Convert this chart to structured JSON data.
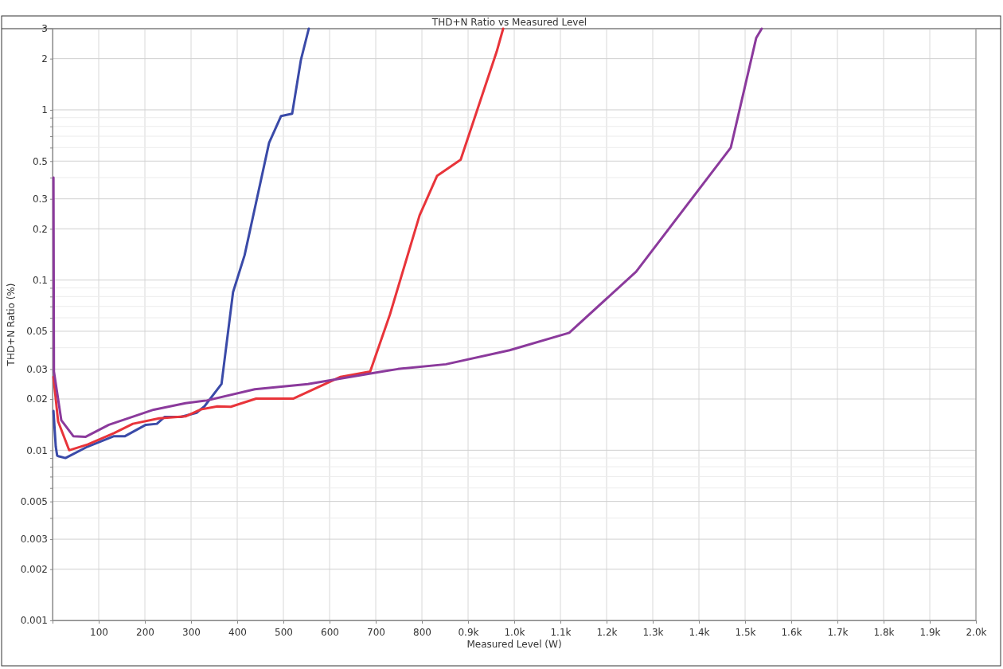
{
  "chart_data": {
    "type": "line",
    "title": "THD+N Ratio vs Measured Level",
    "xlabel": "Measured Level (W)",
    "ylabel": "THD+N Ratio (%)",
    "log": "y",
    "grid": true,
    "marker": "none",
    "line_style": "solid",
    "xlim": [
      0,
      2000
    ],
    "xticks": [
      100,
      200,
      300,
      400,
      500,
      600,
      700,
      800,
      {
        "value": 900,
        "label": "0.9k"
      },
      {
        "value": 1000,
        "label": "1.0k"
      },
      {
        "value": 1100,
        "label": "1.1k"
      },
      {
        "value": 1200,
        "label": "1.2k"
      },
      {
        "value": 1300,
        "label": "1.3k"
      },
      {
        "value": 1400,
        "label": "1.4k"
      },
      {
        "value": 1500,
        "label": "1.5k"
      },
      {
        "value": 1600,
        "label": "1.6k"
      },
      {
        "value": 1700,
        "label": "1.7k"
      },
      {
        "value": 1800,
        "label": "1.8k"
      },
      {
        "value": 1900,
        "label": "1.9k"
      },
      {
        "value": 2000,
        "label": "2.0k"
      }
    ],
    "ylim": [
      0.001,
      3
    ],
    "yticks": [
      0.001,
      0.002,
      0.003,
      {
        "value": 0.004,
        "label": null
      },
      0.005,
      {
        "value": 0.006,
        "label": null
      },
      {
        "value": 0.007,
        "label": null
      },
      {
        "value": 0.008,
        "label": null
      },
      {
        "value": 0.009,
        "label": null
      },
      0.01,
      0.02,
      0.03,
      {
        "value": 0.04,
        "label": null
      },
      0.05,
      {
        "value": 0.06,
        "label": null
      },
      {
        "value": 0.07,
        "label": null
      },
      {
        "value": 0.08,
        "label": null
      },
      {
        "value": 0.09,
        "label": null
      },
      0.1,
      0.2,
      0.3,
      {
        "value": 0.4,
        "label": null
      },
      0.5,
      {
        "value": 0.6,
        "label": null
      },
      {
        "value": 0.7,
        "label": null
      },
      {
        "value": 0.8,
        "label": null
      },
      {
        "value": 0.9,
        "label": null
      },
      1,
      2,
      3
    ],
    "series": [
      {
        "color": "#3a4aa8",
        "x": [
          2,
          7,
          10,
          14,
          28,
          76,
          133,
          157,
          202,
          226,
          243,
          278,
          312,
          329,
          366,
          391,
          416,
          469,
          495,
          519,
          538,
          555
        ],
        "values": [
          0.017,
          0.0105,
          0.0093,
          0.0092,
          0.009,
          0.0105,
          0.0121,
          0.0121,
          0.0141,
          0.0143,
          0.0157,
          0.0157,
          0.0166,
          0.0181,
          0.0245,
          0.085,
          0.14,
          0.64,
          0.92,
          0.95,
          1.97,
          3
        ]
      },
      {
        "color": "#e8343a",
        "x": [
          2,
          12,
          36,
          76,
          133,
          174,
          231,
          288,
          322,
          357,
          386,
          441,
          521,
          624,
          688,
          731,
          795,
          833,
          884,
          962,
          976
        ],
        "values": [
          0.027,
          0.0148,
          0.01,
          0.0108,
          0.0126,
          0.0143,
          0.0154,
          0.0158,
          0.0174,
          0.0181,
          0.018,
          0.0201,
          0.0201,
          0.027,
          0.029,
          0.063,
          0.24,
          0.41,
          0.51,
          2.2,
          3
        ]
      },
      {
        "color": "#8b3a9c",
        "x": [
          2,
          3,
          19,
          45,
          72,
          122,
          219,
          288,
          334,
          438,
          553,
          714,
          748,
          852,
          990,
          1119,
          1264,
          1469,
          1524,
          1536
        ],
        "values": [
          0.4,
          0.029,
          0.015,
          0.0121,
          0.012,
          0.0141,
          0.0173,
          0.0189,
          0.0196,
          0.0228,
          0.0245,
          0.029,
          0.03,
          0.032,
          0.0387,
          0.049,
          0.112,
          0.6,
          2.64,
          3
        ]
      }
    ]
  }
}
